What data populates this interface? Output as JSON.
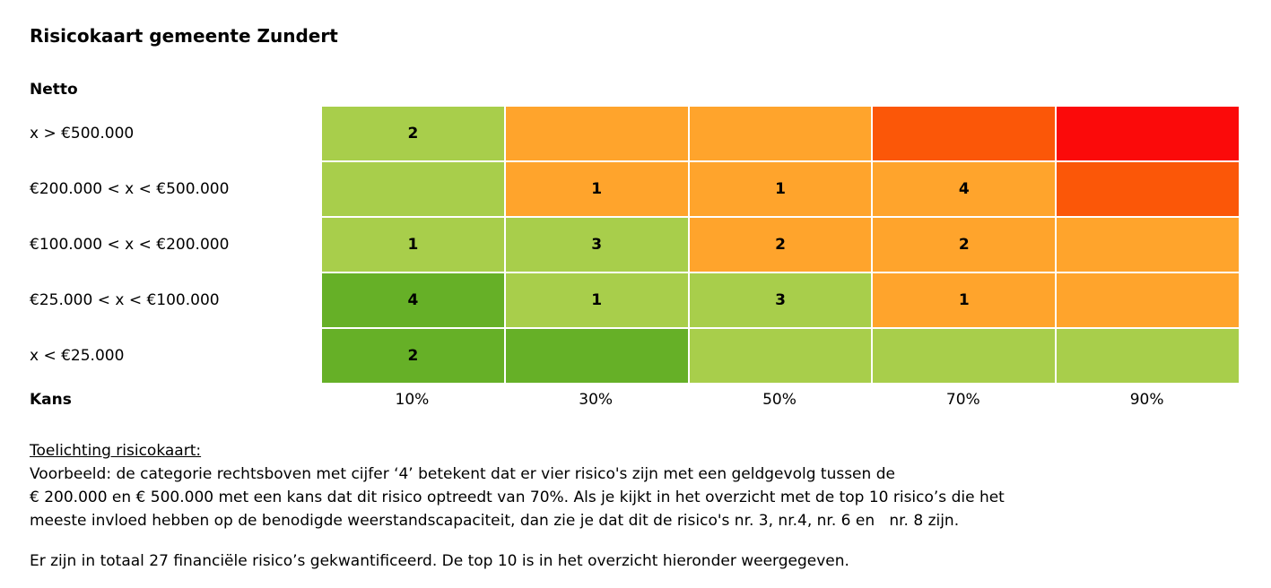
{
  "title": "Risicokaart gemeente Zundert",
  "chart_data": {
    "type": "heatmap",
    "title": "Risicokaart gemeente Zundert",
    "ylabel": "Netto",
    "xlabel": "Kans",
    "columns": [
      "10%",
      "30%",
      "50%",
      "70%",
      "90%"
    ],
    "rows": [
      "x > €500.000",
      "€200.000 < x < €500.000",
      "€100.000 < x < €200.000",
      "€25.000 < x < €100.000",
      "x < €25.000"
    ],
    "cells": [
      [
        {
          "count": "2",
          "level": "lightgreen"
        },
        {
          "count": "",
          "level": "orange"
        },
        {
          "count": "",
          "level": "orange"
        },
        {
          "count": "",
          "level": "darkorange"
        },
        {
          "count": "",
          "level": "red"
        }
      ],
      [
        {
          "count": "",
          "level": "lightgreen"
        },
        {
          "count": "1",
          "level": "orange"
        },
        {
          "count": "1",
          "level": "orange"
        },
        {
          "count": "4",
          "level": "orange"
        },
        {
          "count": "",
          "level": "darkorange"
        }
      ],
      [
        {
          "count": "1",
          "level": "lightgreen"
        },
        {
          "count": "3",
          "level": "lightgreen"
        },
        {
          "count": "2",
          "level": "orange"
        },
        {
          "count": "2",
          "level": "orange"
        },
        {
          "count": "",
          "level": "orange"
        }
      ],
      [
        {
          "count": "4",
          "level": "green"
        },
        {
          "count": "1",
          "level": "lightgreen"
        },
        {
          "count": "3",
          "level": "lightgreen"
        },
        {
          "count": "1",
          "level": "orange"
        },
        {
          "count": "",
          "level": "orange"
        }
      ],
      [
        {
          "count": "2",
          "level": "green"
        },
        {
          "count": "",
          "level": "green"
        },
        {
          "count": "",
          "level": "lightgreen"
        },
        {
          "count": "",
          "level": "lightgreen"
        },
        {
          "count": "",
          "level": "lightgreen"
        }
      ]
    ],
    "colors": {
      "lightgreen": "#A8CE4B",
      "green": "#66B027",
      "orange": "#FFA42C",
      "darkorange": "#FB5708",
      "red": "#FB0A0A"
    },
    "legend_position": "none",
    "grid": false
  },
  "notes": {
    "heading": "Toelichting risicokaart:",
    "example": "Voorbeeld: de categorie rechtsboven met cijfer ‘4’ betekent dat er vier risico's zijn met een geldgevolg tussen de\n€ 200.000 en € 500.000 met een kans dat dit risico optreedt van 70%. Als je kijkt in het overzicht met de top 10 risico’s die het\nmeeste invloed hebben op de benodigde weerstandscapaciteit, dan zie je dat dit de risico's nr. 3, nr.4, nr. 6 en   nr. 8 zijn.",
    "total": "Er zijn in totaal 27 financiële risico’s gekwantificeerd. De top 10 is in het overzicht hieronder weergegeven."
  }
}
